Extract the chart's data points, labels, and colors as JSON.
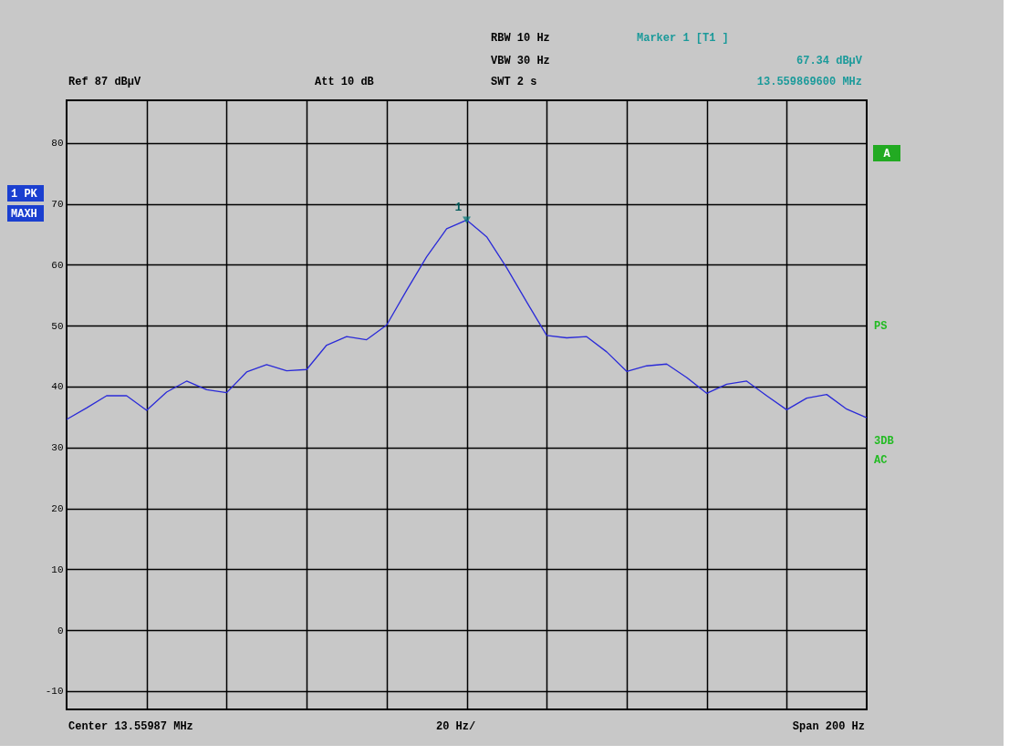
{
  "chart_data": {
    "type": "line",
    "categories": [
      null,
      null,
      null,
      null,
      null,
      null,
      null,
      null,
      null,
      null,
      null,
      null,
      null,
      null,
      null,
      null,
      null,
      null,
      null,
      null,
      null,
      null,
      null,
      null,
      null,
      null,
      null,
      null,
      null,
      null,
      null,
      null,
      null,
      null,
      null,
      null,
      null,
      null,
      null,
      null,
      null
    ],
    "series": [
      {
        "color": "#2a2ad8",
        "values": [
          34.6,
          36.5,
          38.5,
          38.5,
          36.1,
          39.1,
          40.9,
          39.5,
          39.0,
          42.4,
          43.6,
          42.6,
          42.8,
          46.8,
          48.2,
          47.7,
          50.1,
          55.8,
          61.3,
          65.9,
          67.34,
          64.6,
          59.5,
          53.9,
          48.4,
          48.0,
          48.2,
          45.7,
          42.5,
          43.4,
          43.7,
          41.5,
          38.9,
          40.4,
          40.9,
          38.5,
          36.2,
          38.1,
          38.7,
          36.3,
          34.9
        ]
      }
    ],
    "ylim": [
      -13,
      87
    ],
    "yticks": [
      -10,
      0,
      10,
      20,
      30,
      40,
      50,
      60,
      70,
      80
    ],
    "tick_labels": "y",
    "grid": true,
    "line_style": "solid",
    "annotations": [
      "RBW 10 Hz",
      "VBW 30 Hz",
      "SWT 2 s",
      "Ref 87 dBµV",
      "Att 10 dB",
      "Marker 1 [T1 ]",
      "67.34 dBµV",
      "13.559869600 MHz",
      "Center 13.55987 MHz",
      "20 Hz/",
      "Span 200 Hz",
      "1 PK",
      "MAXH",
      "A",
      "PS",
      "3DB",
      "AC",
      {
        "text": "1",
        "y": 67.34
      }
    ]
  }
}
